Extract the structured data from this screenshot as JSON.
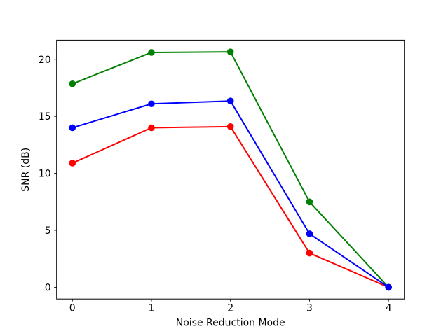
{
  "figure": {
    "background": "#ffffff",
    "frame_color": "#000000",
    "text_color": "#000000"
  },
  "chart_data": {
    "type": "line",
    "title": "",
    "xlabel": "Noise Reduction Mode",
    "ylabel": "SNR (dB)",
    "x": [
      0,
      1,
      2,
      3,
      4
    ],
    "series": [
      {
        "name": "red",
        "color": "#ff0000",
        "marker": "o",
        "values": [
          10.9,
          14.0,
          14.1,
          3.0,
          0.0
        ]
      },
      {
        "name": "green",
        "color": "#008000",
        "marker": "o",
        "values": [
          17.85,
          20.6,
          20.65,
          7.5,
          0.0
        ]
      },
      {
        "name": "blue",
        "color": "#0000ff",
        "marker": "o",
        "values": [
          14.0,
          16.1,
          16.35,
          4.7,
          0.0
        ]
      }
    ],
    "xticks": [
      0,
      1,
      2,
      3,
      4
    ],
    "yticks": [
      0,
      5,
      10,
      15,
      20
    ],
    "xlim": [
      -0.2,
      4.2
    ],
    "ylim": [
      -1.03,
      21.68
    ],
    "grid": false,
    "legend": null
  }
}
